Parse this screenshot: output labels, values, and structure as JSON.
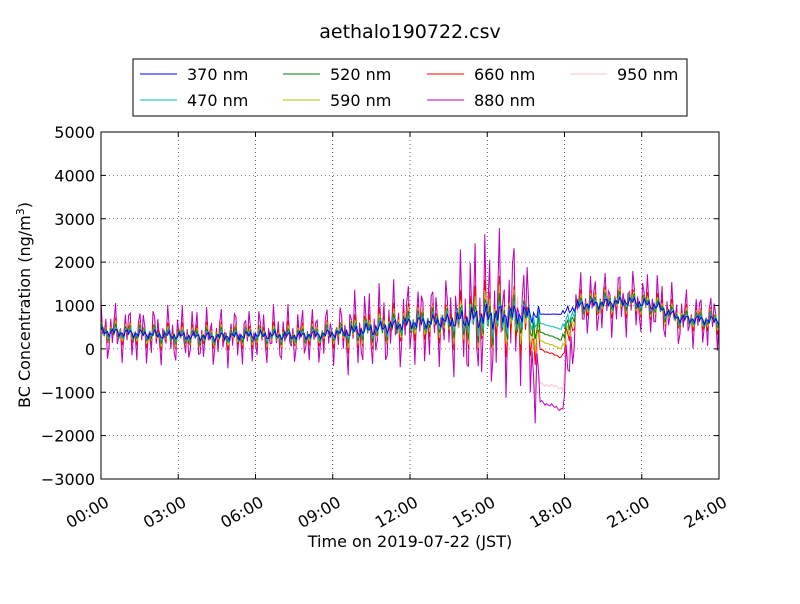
{
  "chart_data": {
    "type": "line",
    "title": "aethalo190722.csv",
    "xlabel": "Time on 2019-07-22 (JST)",
    "ylabel": "BC Concentration (ng/m³)",
    "ylabel_base": "BC Concentration (ng/m",
    "ylabel_sup": "3",
    "ylabel_close": ")",
    "xlim": [
      0,
      24
    ],
    "ylim": [
      -3000,
      5000
    ],
    "x_ticks": [
      0,
      3,
      6,
      9,
      12,
      15,
      18,
      21,
      24
    ],
    "x_tick_labels": [
      "00:00",
      "03:00",
      "06:00",
      "09:00",
      "12:00",
      "15:00",
      "18:00",
      "21:00",
      "24:00"
    ],
    "y_ticks": [
      -3000,
      -2000,
      -1000,
      0,
      1000,
      2000,
      3000,
      4000,
      5000
    ],
    "y_tick_labels": [
      "−3000",
      "−2000",
      "−1000",
      "0",
      "1000",
      "2000",
      "3000",
      "4000",
      "5000"
    ],
    "grid": true,
    "legend_position": "top",
    "series": [
      {
        "name": "370 nm",
        "color": "#0000ff",
        "amp": 150,
        "x": [
          0,
          1.5,
          3,
          4.5,
          6,
          7.5,
          9,
          10.5,
          12,
          13.5,
          15,
          16.5,
          17,
          17.9,
          18.5,
          19.5,
          20.5,
          21.5,
          22.5,
          24
        ],
        "y": [
          400,
          350,
          300,
          280,
          320,
          300,
          350,
          450,
          600,
          650,
          750,
          800,
          800,
          800,
          1000,
          1050,
          1100,
          1000,
          700,
          650
        ]
      },
      {
        "name": "470 nm",
        "color": "#00bfbf",
        "amp": 220,
        "x": [
          0,
          1.5,
          3,
          4.5,
          6,
          7.5,
          9,
          10.5,
          12,
          13.5,
          15,
          16.5,
          17,
          17.9,
          18.5,
          19.5,
          20.5,
          21.5,
          22.5,
          24
        ],
        "y": [
          400,
          350,
          300,
          280,
          320,
          300,
          350,
          450,
          600,
          650,
          700,
          750,
          600,
          450,
          1000,
          1050,
          1100,
          1000,
          700,
          650
        ]
      },
      {
        "name": "520 nm",
        "color": "#008000",
        "amp": 300,
        "x": [
          0,
          1.5,
          3,
          4.5,
          6,
          7.5,
          9,
          10.5,
          12,
          13.5,
          15,
          16.5,
          17,
          17.9,
          18.5,
          19.5,
          20.5,
          21.5,
          22.5,
          24
        ],
        "y": [
          400,
          350,
          300,
          280,
          320,
          300,
          350,
          450,
          600,
          650,
          700,
          700,
          400,
          200,
          1000,
          1050,
          1100,
          1000,
          700,
          650
        ]
      },
      {
        "name": "590 nm",
        "color": "#bfbf00",
        "amp": 380,
        "x": [
          0,
          1.5,
          3,
          4.5,
          6,
          7.5,
          9,
          10.5,
          12,
          13.5,
          15,
          16.5,
          17,
          17.9,
          18.5,
          19.5,
          20.5,
          21.5,
          22.5,
          24
        ],
        "y": [
          400,
          350,
          300,
          280,
          320,
          300,
          350,
          450,
          600,
          650,
          700,
          650,
          200,
          0,
          1000,
          1050,
          1100,
          1000,
          700,
          650
        ]
      },
      {
        "name": "660 nm",
        "color": "#ff0000",
        "amp": 480,
        "x": [
          0,
          1.5,
          3,
          4.5,
          6,
          7.5,
          9,
          10.5,
          12,
          13.5,
          15,
          16.5,
          17,
          17.9,
          18.5,
          19.5,
          20.5,
          21.5,
          22.5,
          24
        ],
        "y": [
          400,
          350,
          300,
          280,
          320,
          300,
          350,
          450,
          600,
          650,
          700,
          600,
          0,
          -200,
          1000,
          1050,
          1100,
          1000,
          700,
          650
        ]
      },
      {
        "name": "880 nm",
        "color": "#bf00bf",
        "amp": 1000,
        "x": [
          0,
          1.5,
          3,
          4.5,
          6,
          7.5,
          9,
          10.5,
          12,
          13.5,
          15,
          16.5,
          17,
          17.9,
          18.5,
          19.5,
          20.5,
          21.5,
          22.5,
          24
        ],
        "y": [
          400,
          350,
          300,
          280,
          320,
          300,
          350,
          450,
          600,
          650,
          800,
          900,
          -1200,
          -1400,
          1000,
          1050,
          1100,
          1000,
          700,
          650
        ]
      },
      {
        "name": "950 nm",
        "color": "#ffc0cb",
        "amp": 800,
        "x": [
          0,
          1.5,
          3,
          4.5,
          6,
          7.5,
          9,
          10.5,
          12,
          13.5,
          15,
          16.5,
          17,
          17.9,
          18.5,
          19.5,
          20.5,
          21.5,
          22.5,
          24
        ],
        "y": [
          400,
          350,
          300,
          280,
          320,
          300,
          350,
          450,
          600,
          650,
          800,
          900,
          -800,
          -900,
          1000,
          1050,
          1100,
          1000,
          700,
          650
        ]
      }
    ]
  }
}
